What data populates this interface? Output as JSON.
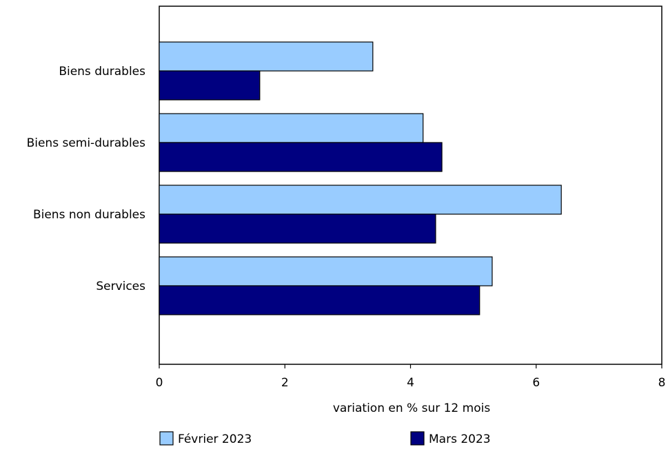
{
  "chart_data": {
    "type": "bar",
    "orientation": "horizontal",
    "categories": [
      "Biens durables",
      "Biens semi-durables",
      "Biens non durables",
      "Services"
    ],
    "series": [
      {
        "name": "Février 2023",
        "values": [
          3.4,
          4.2,
          6.4,
          5.3
        ],
        "color": "#99ccff"
      },
      {
        "name": "Mars 2023",
        "values": [
          1.6,
          4.5,
          4.4,
          5.1
        ],
        "color": "#000080"
      }
    ],
    "xlabel": "variation en % sur 12 mois",
    "xlim": [
      0,
      8
    ],
    "xticks": [
      0,
      2,
      4,
      6,
      8
    ],
    "grid": false,
    "legend_position": "bottom"
  }
}
